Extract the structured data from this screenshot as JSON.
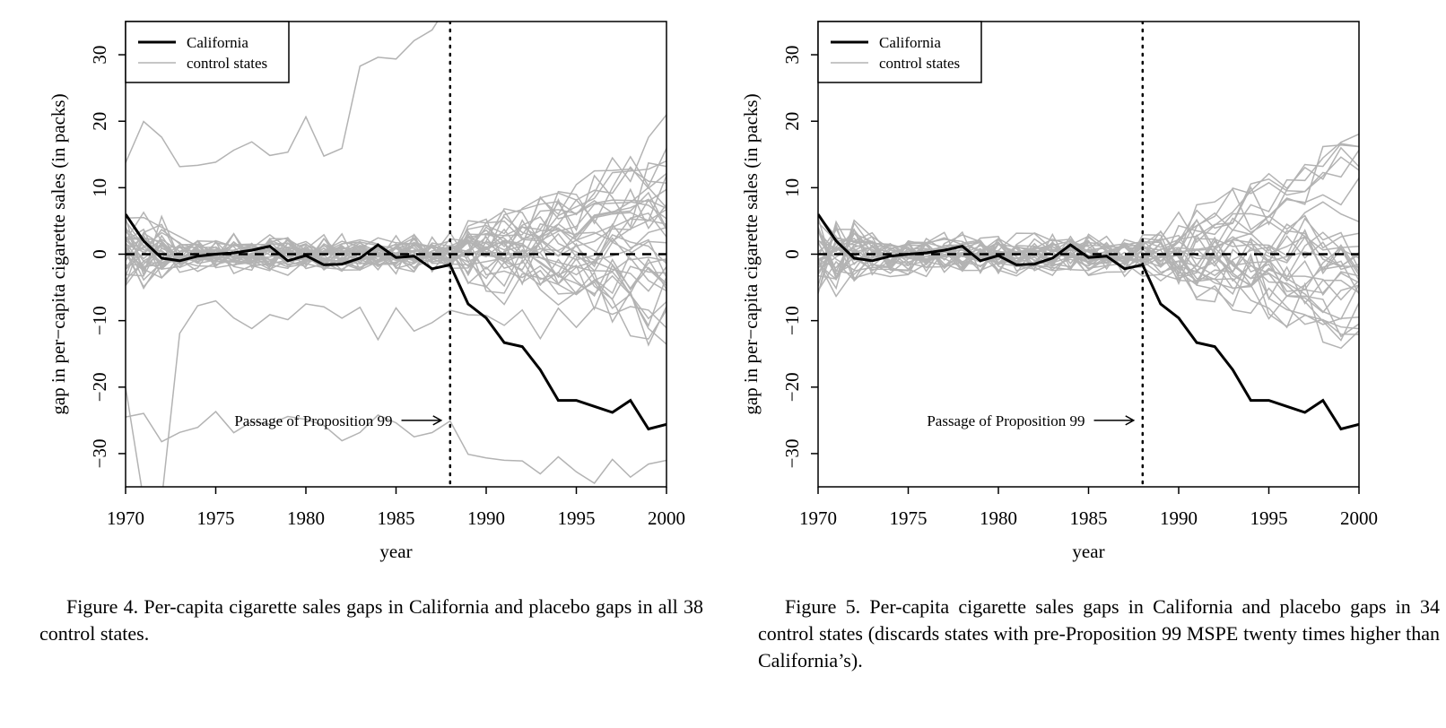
{
  "chart_data": [
    {
      "type": "line",
      "ylabel": "gap in per−capita cigarette sales (in packs)",
      "xlabel": "year",
      "xlim": [
        1970,
        2000
      ],
      "ylim": [
        -35,
        35
      ],
      "x_ticks": [
        "1970",
        "1975",
        "1980",
        "1985",
        "1990",
        "1995",
        "2000"
      ],
      "y_ticks": [
        "−30",
        "−20",
        "−10",
        "0",
        "10",
        "20",
        "30"
      ],
      "legend": {
        "position": "top-left",
        "entries": [
          "California",
          "control states"
        ]
      },
      "annotation": {
        "text": "Passage of Proposition 99",
        "x": 1988,
        "y": -25
      },
      "vline_x": 1988,
      "hline_y": 0,
      "series": [
        {
          "name": "California",
          "color": "#000000",
          "x": [
            1970,
            1971,
            1972,
            1973,
            1974,
            1975,
            1976,
            1977,
            1978,
            1979,
            1980,
            1981,
            1982,
            1983,
            1984,
            1985,
            1986,
            1987,
            1988,
            1989,
            1990,
            1991,
            1992,
            1993,
            1994,
            1995,
            1996,
            1997,
            1998,
            1999,
            2000
          ],
          "values": [
            6.0,
            2.0,
            -0.6,
            -1.0,
            -0.3,
            0.0,
            0.2,
            0.6,
            1.2,
            -1.0,
            -0.2,
            -1.6,
            -1.5,
            -0.6,
            1.4,
            -0.5,
            -0.3,
            -2.2,
            -1.6,
            -7.5,
            -9.6,
            -13.3,
            -13.9,
            -17.4,
            -22.0,
            -22.0,
            -22.9,
            -23.8,
            -22.0,
            -26.3,
            -25.6
          ]
        }
      ]
    },
    {
      "type": "line",
      "ylabel": "gap in per−capita cigarette sales (in packs)",
      "xlabel": "year",
      "xlim": [
        1970,
        2000
      ],
      "ylim": [
        -35,
        35
      ],
      "x_ticks": [
        "1970",
        "1975",
        "1980",
        "1985",
        "1990",
        "1995",
        "2000"
      ],
      "y_ticks": [
        "−30",
        "−20",
        "−10",
        "0",
        "10",
        "20",
        "30"
      ],
      "legend": {
        "position": "top-left",
        "entries": [
          "California",
          "control states"
        ]
      },
      "annotation": {
        "text": "Passage of Proposition 99",
        "x": 1988,
        "y": -25
      },
      "vline_x": 1988,
      "hline_y": 0,
      "series": [
        {
          "name": "California",
          "color": "#000000",
          "x": [
            1970,
            1971,
            1972,
            1973,
            1974,
            1975,
            1976,
            1977,
            1978,
            1979,
            1980,
            1981,
            1982,
            1983,
            1984,
            1985,
            1986,
            1987,
            1988,
            1989,
            1990,
            1991,
            1992,
            1993,
            1994,
            1995,
            1996,
            1997,
            1998,
            1999,
            2000
          ],
          "values": [
            6.0,
            2.0,
            -0.6,
            -1.0,
            -0.3,
            0.0,
            0.2,
            0.6,
            1.2,
            -1.0,
            -0.2,
            -1.6,
            -1.5,
            -0.6,
            1.4,
            -0.5,
            -0.3,
            -2.2,
            -1.6,
            -7.5,
            -9.6,
            -13.3,
            -13.9,
            -17.4,
            -22.0,
            -22.0,
            -22.9,
            -23.8,
            -22.0,
            -26.3,
            -25.6
          ]
        }
      ]
    }
  ],
  "control_color": "#b3b3b3",
  "captions": {
    "fig4": "Figure 4.  Per-capita cigarette sales gaps in California and placebo gaps in all 38 control states.",
    "fig5": "Figure 5.  Per-capita cigarette sales gaps in California and placebo gaps in 34 control states (discards states with pre-Proposition 99 MSPE twenty times higher than California’s)."
  }
}
